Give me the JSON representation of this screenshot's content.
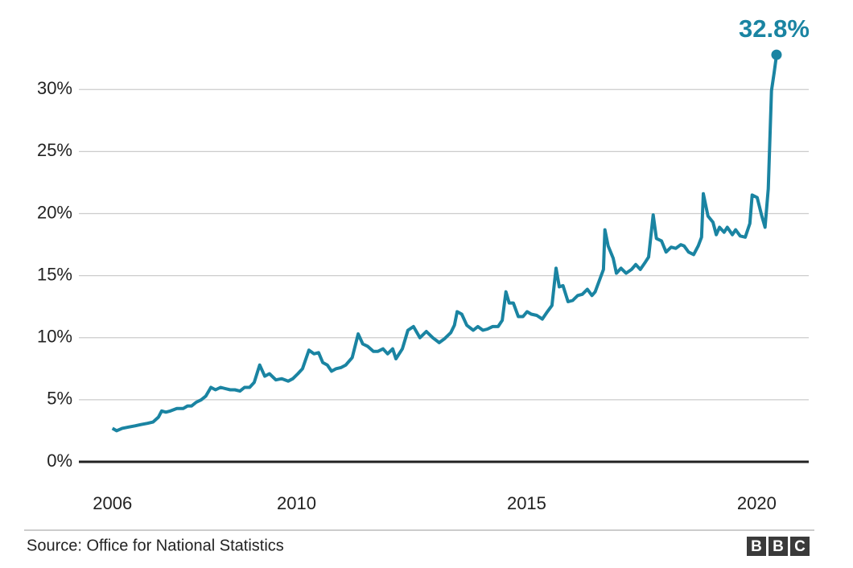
{
  "chart_data": {
    "type": "line",
    "annotation": "32.8%",
    "source": "Source: Office for National Statistics",
    "logo": [
      "B",
      "B",
      "C"
    ],
    "x": [
      2006.0,
      2006.09,
      2006.21,
      2006.35,
      2006.49,
      2006.62,
      2006.76,
      2006.88,
      2007.0,
      2007.07,
      2007.16,
      2007.26,
      2007.4,
      2007.54,
      2007.63,
      2007.72,
      2007.82,
      2007.93,
      2008.03,
      2008.14,
      2008.24,
      2008.35,
      2008.45,
      2008.56,
      2008.66,
      2008.77,
      2008.87,
      2008.98,
      2009.08,
      2009.2,
      2009.31,
      2009.41,
      2009.55,
      2009.68,
      2009.82,
      2009.92,
      2010.03,
      2010.13,
      2010.27,
      2010.38,
      2010.48,
      2010.57,
      2010.67,
      2010.76,
      2010.86,
      2010.97,
      2011.07,
      2011.21,
      2011.34,
      2011.44,
      2011.55,
      2011.67,
      2011.77,
      2011.88,
      2011.98,
      2012.09,
      2012.16,
      2012.3,
      2012.42,
      2012.54,
      2012.68,
      2012.82,
      2012.96,
      2013.1,
      2013.21,
      2013.35,
      2013.43,
      2013.49,
      2013.59,
      2013.7,
      2013.84,
      2013.94,
      2014.05,
      2014.15,
      2014.26,
      2014.38,
      2014.47,
      2014.55,
      2014.62,
      2014.71,
      2014.82,
      2014.92,
      2015.01,
      2015.1,
      2015.22,
      2015.34,
      2015.45,
      2015.55,
      2015.64,
      2015.71,
      2015.79,
      2015.9,
      2016.0,
      2016.11,
      2016.21,
      2016.32,
      2016.42,
      2016.49,
      2016.6,
      2016.67,
      2016.7,
      2016.77,
      2016.88,
      2016.95,
      2017.05,
      2017.16,
      2017.28,
      2017.37,
      2017.47,
      2017.58,
      2017.65,
      2017.75,
      2017.82,
      2017.93,
      2018.03,
      2018.14,
      2018.24,
      2018.35,
      2018.42,
      2018.52,
      2018.63,
      2018.73,
      2018.8,
      2018.84,
      2018.94,
      2019.05,
      2019.12,
      2019.19,
      2019.29,
      2019.36,
      2019.47,
      2019.54,
      2019.64,
      2019.75,
      2019.85,
      2019.9,
      2020.01,
      2020.11,
      2020.18,
      2020.25,
      2020.32,
      2020.38,
      2020.43
    ],
    "series": [
      {
        "color": "#1a84a2",
        "values": [
          2.7,
          2.5,
          2.7,
          2.8,
          2.9,
          3.0,
          3.1,
          3.2,
          3.6,
          4.1,
          4.0,
          4.1,
          4.3,
          4.3,
          4.5,
          4.5,
          4.8,
          5.0,
          5.3,
          6.0,
          5.8,
          6.0,
          5.9,
          5.8,
          5.8,
          5.7,
          6.0,
          6.0,
          6.4,
          7.8,
          6.9,
          7.1,
          6.6,
          6.7,
          6.5,
          6.7,
          7.1,
          7.5,
          9.0,
          8.7,
          8.8,
          8.0,
          7.8,
          7.3,
          7.5,
          7.6,
          7.8,
          8.4,
          10.3,
          9.5,
          9.3,
          8.9,
          8.9,
          9.1,
          8.7,
          9.1,
          8.3,
          9.1,
          10.6,
          10.9,
          10.0,
          10.5,
          10.0,
          9.6,
          9.9,
          10.4,
          11.0,
          12.1,
          11.9,
          11.0,
          10.6,
          10.9,
          10.6,
          10.7,
          10.9,
          10.9,
          11.4,
          13.7,
          12.8,
          12.8,
          11.7,
          11.7,
          12.1,
          11.9,
          11.8,
          11.5,
          12.1,
          12.6,
          15.6,
          14.1,
          14.2,
          12.9,
          13.0,
          13.4,
          13.5,
          13.9,
          13.4,
          13.7,
          14.8,
          15.5,
          18.7,
          17.4,
          16.4,
          15.2,
          15.6,
          15.2,
          15.5,
          15.9,
          15.5,
          16.1,
          16.5,
          19.9,
          18.0,
          17.8,
          16.9,
          17.3,
          17.2,
          17.5,
          17.4,
          16.9,
          16.7,
          17.4,
          18.1,
          21.6,
          19.8,
          19.3,
          18.3,
          18.9,
          18.5,
          18.9,
          18.3,
          18.7,
          18.2,
          18.1,
          19.2,
          21.5,
          21.3,
          19.8,
          18.9,
          22.0,
          29.9,
          31.4,
          32.8
        ]
      }
    ],
    "xlim": [
      2005.27,
      2021.13
    ],
    "xticks": [
      2006,
      2010,
      2015,
      2020
    ],
    "ylim": [
      0,
      33
    ],
    "yticks": [
      {
        "value": 0,
        "label": "0%"
      },
      {
        "value": 5,
        "label": "5%"
      },
      {
        "value": 10,
        "label": "10%"
      },
      {
        "value": 15,
        "label": "15%"
      },
      {
        "value": 20,
        "label": "20%"
      },
      {
        "value": 25,
        "label": "25%"
      },
      {
        "value": 30,
        "label": "30%"
      }
    ],
    "grid": true
  }
}
